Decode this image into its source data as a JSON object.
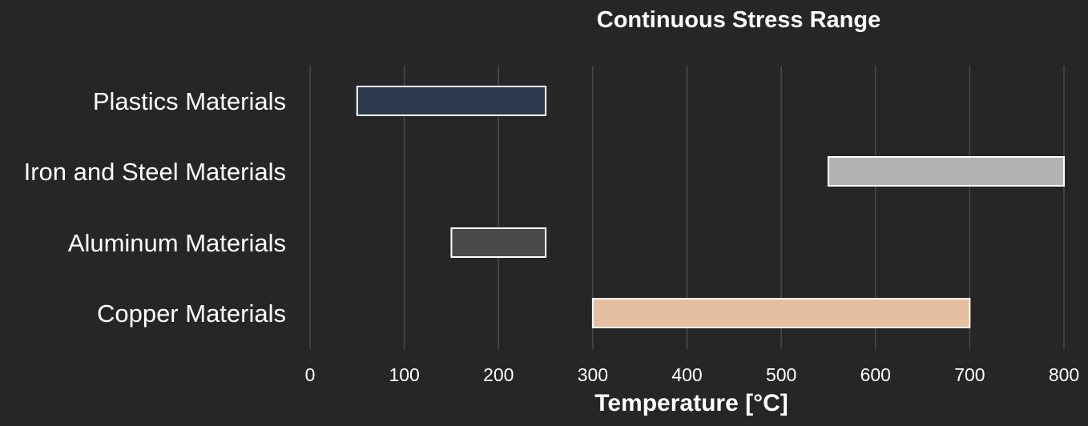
{
  "chart_data": {
    "type": "bar",
    "orientation": "horizontal",
    "title": "Continuous Stress Range",
    "xlabel": "Temperature [°C]",
    "ylabel": "",
    "xlim": [
      0,
      800
    ],
    "xticks": [
      0,
      100,
      200,
      300,
      400,
      500,
      600,
      700,
      800
    ],
    "grid": "vertical",
    "categories": [
      "Plastics Materials",
      "Iron and Steel Materials",
      "Aluminum Materials",
      "Copper Materials"
    ],
    "ranges": [
      {
        "category": "Plastics Materials",
        "start": 50,
        "end": 250,
        "color": "#2b3a4c"
      },
      {
        "category": "Iron and Steel Materials",
        "start": 550,
        "end": 800,
        "color": "#b3b3b3"
      },
      {
        "category": "Aluminum Materials",
        "start": 150,
        "end": 250,
        "color": "#4a4a4a"
      },
      {
        "category": "Copper Materials",
        "start": 300,
        "end": 700,
        "color": "#e5bfa0"
      }
    ]
  },
  "colors": {
    "background": "#262626",
    "text": "#ffffff",
    "grid": "#4a4a4a",
    "bar_outline": "#ffffff"
  }
}
